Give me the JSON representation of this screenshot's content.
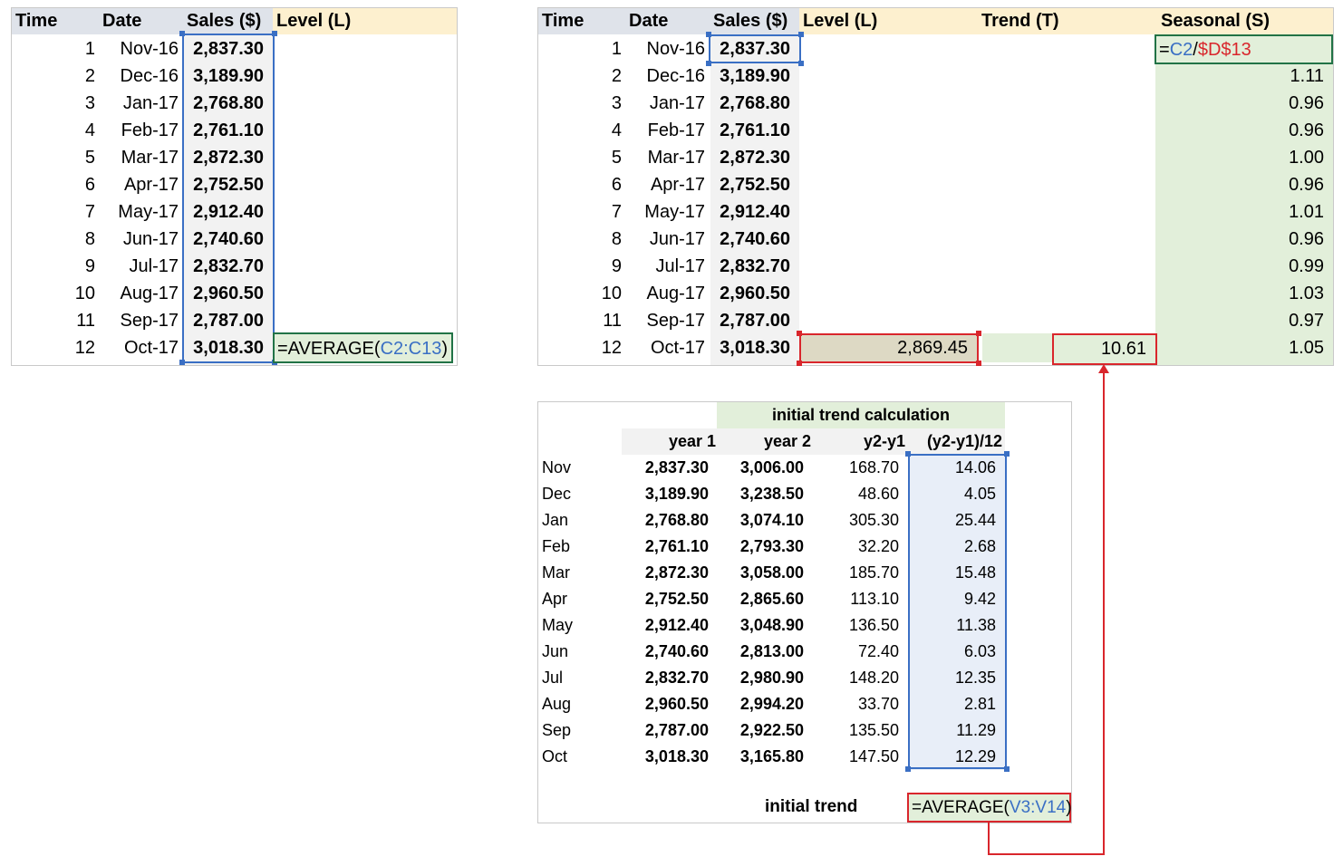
{
  "left_sheet": {
    "headers": [
      "Time",
      "Date",
      "Sales ($)",
      "Level (L)"
    ],
    "rows": [
      {
        "time": "1",
        "date": "Nov-16",
        "sales": "2,837.30"
      },
      {
        "time": "2",
        "date": "Dec-16",
        "sales": "3,189.90"
      },
      {
        "time": "3",
        "date": "Jan-17",
        "sales": "2,768.80"
      },
      {
        "time": "4",
        "date": "Feb-17",
        "sales": "2,761.10"
      },
      {
        "time": "5",
        "date": "Mar-17",
        "sales": "2,872.30"
      },
      {
        "time": "6",
        "date": "Apr-17",
        "sales": "2,752.50"
      },
      {
        "time": "7",
        "date": "May-17",
        "sales": "2,912.40"
      },
      {
        "time": "8",
        "date": "Jun-17",
        "sales": "2,740.60"
      },
      {
        "time": "9",
        "date": "Jul-17",
        "sales": "2,832.70"
      },
      {
        "time": "10",
        "date": "Aug-17",
        "sales": "2,960.50"
      },
      {
        "time": "11",
        "date": "Sep-17",
        "sales": "2,787.00"
      },
      {
        "time": "12",
        "date": "Oct-17",
        "sales": "3,018.30"
      }
    ],
    "formula": {
      "prefix": "=AVERAGE(",
      "ref": "C2:C13",
      "suffix": ")"
    }
  },
  "right_sheet": {
    "headers": [
      "Time",
      "Date",
      "Sales ($)",
      "Level (L)",
      "Trend (T)",
      "Seasonal (S)"
    ],
    "rows": [
      {
        "time": "1",
        "date": "Nov-16",
        "sales": "2,837.30",
        "seasonal": ""
      },
      {
        "time": "2",
        "date": "Dec-16",
        "sales": "3,189.90",
        "seasonal": "1.11"
      },
      {
        "time": "3",
        "date": "Jan-17",
        "sales": "2,768.80",
        "seasonal": "0.96"
      },
      {
        "time": "4",
        "date": "Feb-17",
        "sales": "2,761.10",
        "seasonal": "0.96"
      },
      {
        "time": "5",
        "date": "Mar-17",
        "sales": "2,872.30",
        "seasonal": "1.00"
      },
      {
        "time": "6",
        "date": "Apr-17",
        "sales": "2,752.50",
        "seasonal": "0.96"
      },
      {
        "time": "7",
        "date": "May-17",
        "sales": "2,912.40",
        "seasonal": "1.01"
      },
      {
        "time": "8",
        "date": "Jun-17",
        "sales": "2,740.60",
        "seasonal": "0.96"
      },
      {
        "time": "9",
        "date": "Jul-17",
        "sales": "2,832.70",
        "seasonal": "0.99"
      },
      {
        "time": "10",
        "date": "Aug-17",
        "sales": "2,960.50",
        "seasonal": "1.03"
      },
      {
        "time": "11",
        "date": "Sep-17",
        "sales": "2,787.00",
        "seasonal": "0.97"
      },
      {
        "time": "12",
        "date": "Oct-17",
        "sales": "3,018.30",
        "seasonal": "1.05"
      }
    ],
    "level_value": "2,869.45",
    "trend_value": "10.61",
    "seasonal_formula": {
      "eq": "=",
      "ref1": "C2",
      "slash": "/",
      "ref2": "$D$13"
    }
  },
  "trend_sheet": {
    "title": "initial trend calculation",
    "headers": [
      "year 1",
      "year 2",
      "y2-y1",
      "(y2-y1)/12"
    ],
    "rows": [
      {
        "month": "Nov",
        "y1": "2,837.30",
        "y2": "3,006.00",
        "diff": "168.70",
        "div": "14.06"
      },
      {
        "month": "Dec",
        "y1": "3,189.90",
        "y2": "3,238.50",
        "diff": "48.60",
        "div": "4.05"
      },
      {
        "month": "Jan",
        "y1": "2,768.80",
        "y2": "3,074.10",
        "diff": "305.30",
        "div": "25.44"
      },
      {
        "month": "Feb",
        "y1": "2,761.10",
        "y2": "2,793.30",
        "diff": "32.20",
        "div": "2.68"
      },
      {
        "month": "Mar",
        "y1": "2,872.30",
        "y2": "3,058.00",
        "diff": "185.70",
        "div": "15.48"
      },
      {
        "month": "Apr",
        "y1": "2,752.50",
        "y2": "2,865.60",
        "diff": "113.10",
        "div": "9.42"
      },
      {
        "month": "May",
        "y1": "2,912.40",
        "y2": "3,048.90",
        "diff": "136.50",
        "div": "11.38"
      },
      {
        "month": "Jun",
        "y1": "2,740.60",
        "y2": "2,813.00",
        "diff": "72.40",
        "div": "6.03"
      },
      {
        "month": "Jul",
        "y1": "2,832.70",
        "y2": "2,980.90",
        "diff": "148.20",
        "div": "12.35"
      },
      {
        "month": "Aug",
        "y1": "2,960.50",
        "y2": "2,994.20",
        "diff": "33.70",
        "div": "2.81"
      },
      {
        "month": "Sep",
        "y1": "2,787.00",
        "y2": "2,922.50",
        "diff": "135.50",
        "div": "11.29"
      },
      {
        "month": "Oct",
        "y1": "3,018.30",
        "y2": "3,165.80",
        "diff": "147.50",
        "div": "12.29"
      }
    ],
    "footer_label": "initial trend",
    "formula": {
      "prefix": "=AVERAGE(",
      "ref": "V3:V14",
      "suffix": ")"
    }
  },
  "colors": {
    "header_gray": "#dfe3ea",
    "header_cream": "#fdf0cf",
    "sales_col": "#f2f2f2",
    "seasonal_green": "#e2efda",
    "level_tan": "#ddd9c4",
    "trend_col_blue": "#e8eef8",
    "selection_blue": "#3a6fc4",
    "selection_green": "#217346",
    "highlight_red": "#d9262c"
  }
}
